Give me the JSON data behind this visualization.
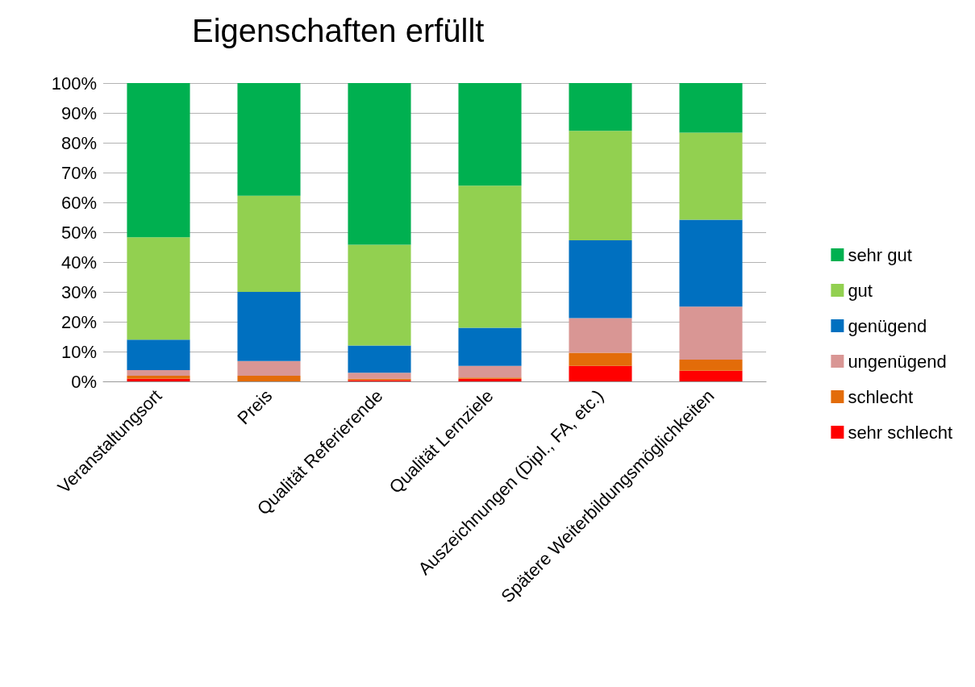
{
  "chart_data": {
    "type": "bar",
    "title": "Eigenschaften erfüllt",
    "stacked": true,
    "categories": [
      "Veranstaltungsort",
      "Preis",
      "Qualität Referierende",
      "Qualität Lernziele",
      "Auszeichnungen (Dipl., FA, etc.)",
      "Spätere Weiterbildungsmöglichkeiten"
    ],
    "series": [
      {
        "name": "sehr schlecht",
        "color": "#ff0000",
        "values": [
          0.9,
          0,
          0.4,
          0.9,
          5.2,
          3.6
        ]
      },
      {
        "name": "schlecht",
        "color": "#e36c09",
        "values": [
          1.0,
          1.9,
          0.5,
          0.4,
          4.4,
          3.7
        ]
      },
      {
        "name": "ungenügend",
        "color": "#d99694",
        "values": [
          1.9,
          4.9,
          2.0,
          3.9,
          11.6,
          17.8
        ]
      },
      {
        "name": "genügend",
        "color": "#0070c0",
        "values": [
          10.2,
          23.2,
          9.1,
          12.8,
          26.1,
          29.1
        ]
      },
      {
        "name": "gut",
        "color": "#92d050",
        "values": [
          34.3,
          32.2,
          33.8,
          47.6,
          36.7,
          29.2
        ]
      },
      {
        "name": "sehr gut",
        "color": "#00b050",
        "values": [
          51.7,
          37.8,
          54.2,
          34.4,
          16.0,
          16.6
        ]
      }
    ],
    "ylim": [
      0,
      100
    ],
    "yticks": [
      {
        "value": 0,
        "label": "0%"
      },
      {
        "value": 10,
        "label": "10%"
      },
      {
        "value": 20,
        "label": "20%"
      },
      {
        "value": 30,
        "label": "30%"
      },
      {
        "value": 40,
        "label": "40%"
      },
      {
        "value": 50,
        "label": "50%"
      },
      {
        "value": 60,
        "label": "60%"
      },
      {
        "value": 70,
        "label": "70%"
      },
      {
        "value": 80,
        "label": "80%"
      },
      {
        "value": 90,
        "label": "90%"
      },
      {
        "value": 100,
        "label": "100%"
      }
    ],
    "grid": "y",
    "legend": "right"
  }
}
